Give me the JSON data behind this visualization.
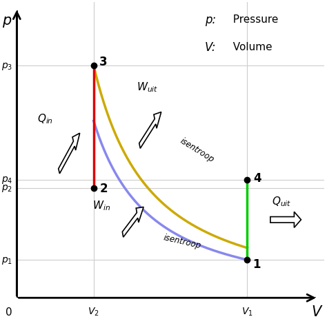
{
  "background_color": "#ffffff",
  "points": {
    "1": [
      3.0,
      0.18
    ],
    "2": [
      1.0,
      0.52
    ],
    "3": [
      1.0,
      1.1
    ],
    "4": [
      3.0,
      0.56
    ]
  },
  "p_labels": {
    "p1": 0.18,
    "p2": 0.52,
    "p3": 1.1,
    "p4": 0.56
  },
  "v_labels": {
    "V2": 1.0,
    "V1": 3.0
  },
  "colors": {
    "red_line": "#dd0000",
    "yellow_line": "#ccaa00",
    "blue_line": "#8888ee",
    "green_line": "#00cc00",
    "grid": "#cccccc",
    "axis": "#000000",
    "point": "#000000",
    "text": "#000000"
  },
  "gamma": 1.4,
  "xlim": [
    0,
    4.0
  ],
  "ylim": [
    0,
    1.4
  ]
}
